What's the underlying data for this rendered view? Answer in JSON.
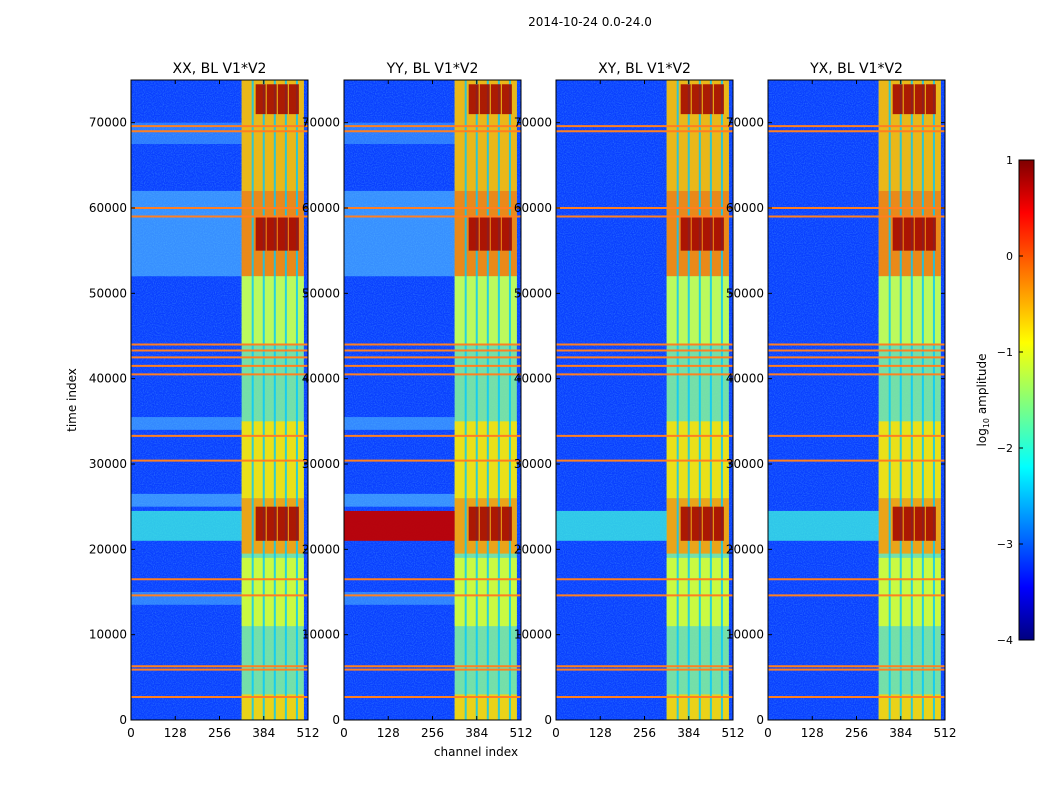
{
  "chart_data": {
    "type": "heatmap",
    "suptitle": "2014-10-24 0.0-24.0",
    "xlabel": "channel index",
    "ylabel": "time index",
    "xlim": [
      0,
      512
    ],
    "ylim": [
      0,
      75000
    ],
    "xticks": [
      "0",
      "128",
      "256",
      "384",
      "512"
    ],
    "yticks": [
      "0",
      "10000",
      "20000",
      "30000",
      "40000",
      "50000",
      "60000",
      "70000"
    ],
    "panels": [
      {
        "title": "XX, BL V1*V2",
        "low_freq_patches": true,
        "rfi_band_strength": "strong"
      },
      {
        "title": "YY, BL V1*V2",
        "low_freq_patches": true,
        "rfi_band_strength": "very strong"
      },
      {
        "title": "XY, BL V1*V2",
        "low_freq_patches": false,
        "rfi_band_strength": "moderate"
      },
      {
        "title": "YX, BL V1*V2",
        "low_freq_patches": false,
        "rfi_band_strength": "moderate"
      }
    ],
    "signal_columns": [
      352,
      384,
      416,
      448,
      480
    ],
    "signal_region": [
      320,
      500
    ],
    "rfi_band_time": [
      21000,
      24500
    ],
    "flagged_rows": [
      2700,
      5900,
      6300,
      14600,
      16500,
      30400,
      33300,
      40500,
      41500,
      42500,
      43300,
      44000,
      59000,
      60000,
      69000,
      69600
    ],
    "colorbar": {
      "label_prefix": "log",
      "label_sub": "10",
      "label_suffix": " amplitude",
      "ticks": [
        "1",
        "0",
        "−1",
        "−2",
        "−3",
        "−4"
      ],
      "range": [
        -4,
        1
      ],
      "colormap": "jet"
    }
  }
}
